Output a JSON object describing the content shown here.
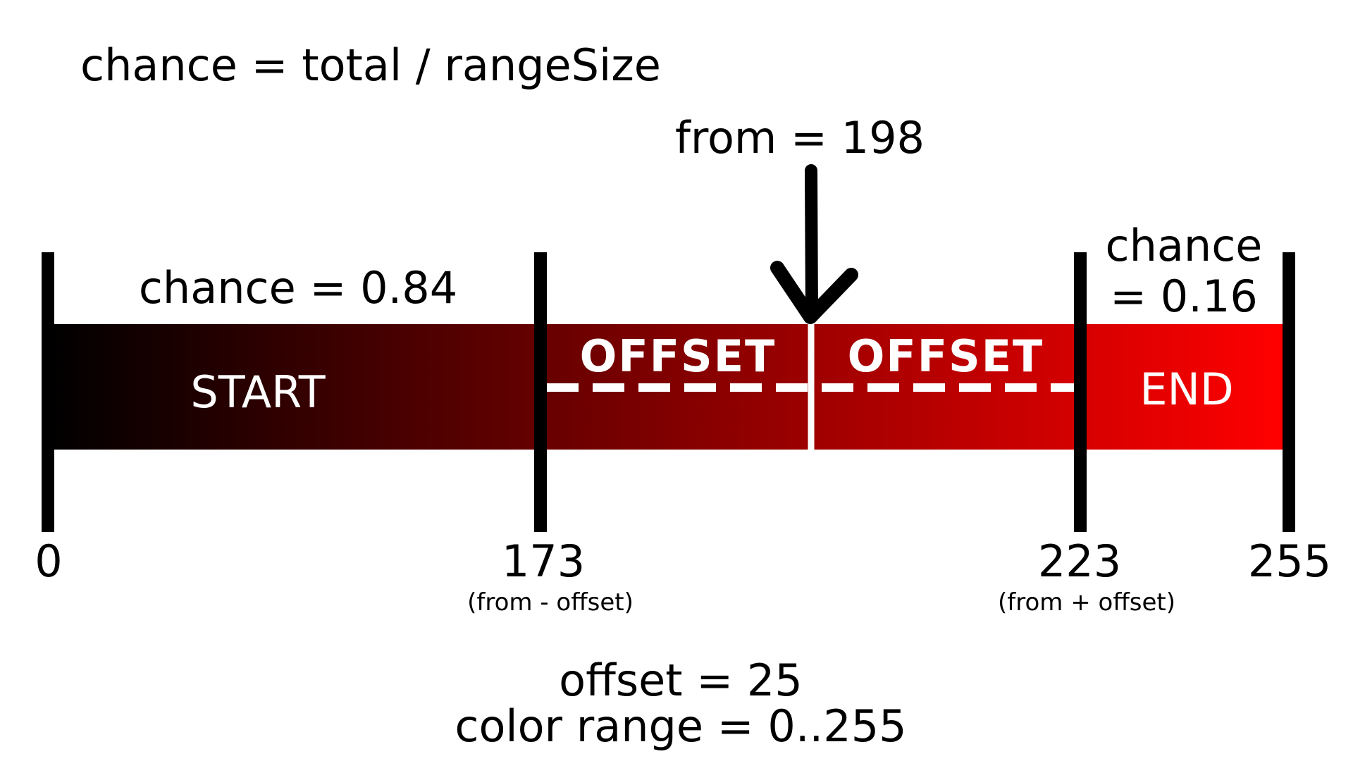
{
  "formula": "chance = total / rangeSize",
  "from_label": "from = 198",
  "segments": {
    "start": "START",
    "offset_left": "OFFSET",
    "offset_right": "OFFSET",
    "end": "END"
  },
  "chance_left": "chance = 0.84",
  "chance_right": {
    "line1": "chance",
    "line2": "= 0.16"
  },
  "axis": {
    "ticks": [
      {
        "label": "0",
        "value": 0
      },
      {
        "label": "173",
        "value": 173,
        "note": "(from - offset)"
      },
      {
        "label": "223",
        "value": 223,
        "note": "(from + offset)"
      },
      {
        "label": "255",
        "value": 255
      }
    ],
    "range": [
      0,
      255
    ],
    "from_value": 198
  },
  "footer": {
    "offset": "offset = 25",
    "color_range": "color range = 0..255"
  },
  "colors": {
    "gradient_start": "#000000",
    "gradient_end": "#ff0000",
    "ticks": "#000000",
    "bar_text": "#ffffff",
    "dash": "#ffffff"
  }
}
